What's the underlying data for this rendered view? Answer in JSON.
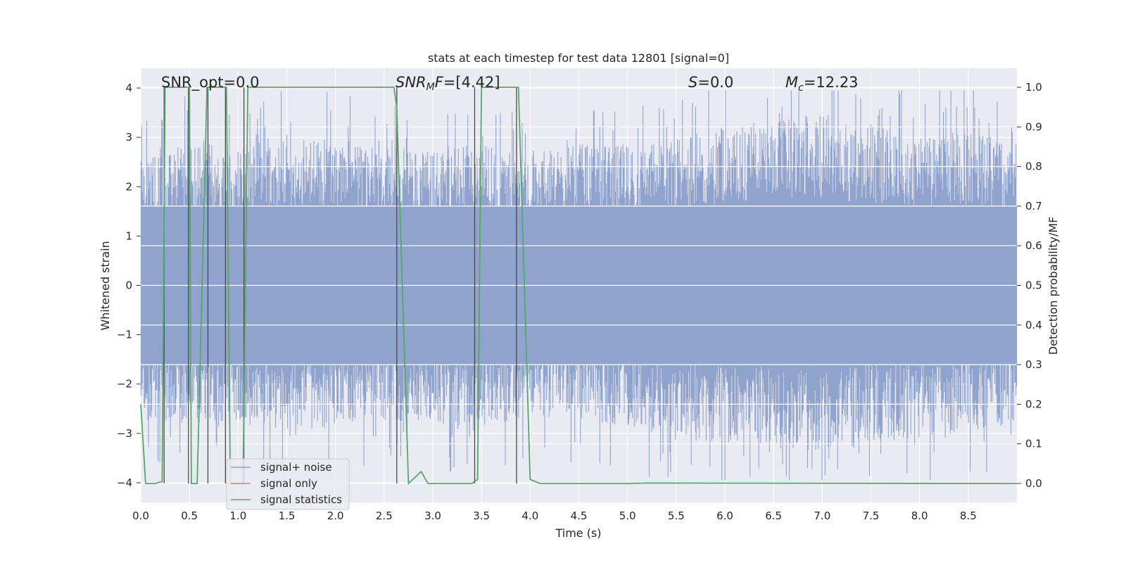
{
  "chart_data": {
    "type": "line",
    "title": "stats at each timestep for test data 12801 [signal=0]",
    "xlabel": "Time (s)",
    "ylabel": "Whitened strain",
    "ylabel_right": "Detection probability/MF",
    "xlim": [
      0.0,
      9.0
    ],
    "ylim": [
      -4.4,
      4.4
    ],
    "ylim_right": [
      -0.048,
      1.048
    ],
    "x_ticks": [
      "0.0",
      "0.5",
      "1.0",
      "1.5",
      "2.0",
      "2.5",
      "3.0",
      "3.5",
      "4.0",
      "4.5",
      "5.0",
      "5.5",
      "6.0",
      "6.5",
      "7.0",
      "7.5",
      "8.0",
      "8.5"
    ],
    "y_ticks": [
      "−4",
      "−3",
      "−2",
      "−1",
      "0",
      "1",
      "2",
      "3",
      "4"
    ],
    "y_right_ticks": [
      "0.0",
      "0.1",
      "0.2",
      "0.3",
      "0.4",
      "0.5",
      "0.6",
      "0.7",
      "0.8",
      "0.9",
      "1.0"
    ],
    "grid": true,
    "legend_position": "lower-left",
    "annotations": {
      "snr_opt": "SNR_opt=0.0",
      "snr_mf_main": "SNR",
      "snr_mf_sub": "M",
      "snr_mf_sub2": "F",
      "snr_mf_value": "=[4.42]",
      "s_main": "S",
      "s_value": "=0.0",
      "mc_main": "M",
      "mc_sub": "c",
      "mc_value": "=12.23"
    },
    "series": [
      {
        "name": "signal+ noise",
        "color": "#8fa3cc",
        "envelope_x": [
          0.0,
          0.5,
          1.0,
          1.5,
          2.0,
          2.5,
          3.0,
          3.5,
          4.0,
          4.5,
          5.0,
          5.5,
          6.0,
          6.5,
          7.0,
          7.5,
          8.0,
          8.5,
          9.0
        ],
        "envelope_upper": [
          2.3,
          2.7,
          2.6,
          2.8,
          2.7,
          2.6,
          2.5,
          2.6,
          2.4,
          2.6,
          2.6,
          2.7,
          3.0,
          3.0,
          3.2,
          3.0,
          2.8,
          2.9,
          2.6
        ],
        "envelope_lower": [
          -2.4,
          -2.6,
          -2.5,
          -2.8,
          -2.6,
          -2.5,
          -2.6,
          -2.7,
          -2.4,
          -2.5,
          -2.6,
          -2.9,
          -2.9,
          -3.0,
          -3.1,
          -2.9,
          -2.8,
          -2.7,
          -2.5
        ]
      },
      {
        "name": "signal only",
        "color": "#dd8452"
      },
      {
        "name": "signal statistics",
        "color": "#55a868",
        "x": [
          0.0,
          0.05,
          0.15,
          0.22,
          0.25,
          0.3,
          0.5,
          0.52,
          0.58,
          0.68,
          0.74,
          0.88,
          0.92,
          1.05,
          1.1,
          1.15,
          2.6,
          2.63,
          2.75,
          2.88,
          2.95,
          3.4,
          3.46,
          3.5,
          3.85,
          3.88,
          4.0,
          4.1,
          5.0,
          5.2,
          9.0
        ],
        "y": [
          0.2,
          0.0,
          0.0,
          0.005,
          1.0,
          1.0,
          1.0,
          0.0,
          0.0,
          1.0,
          1.0,
          1.0,
          0.0,
          0.0,
          1.0,
          1.0,
          1.0,
          0.95,
          0.0,
          0.03,
          0.0,
          0.0,
          0.01,
          1.0,
          1.0,
          1.0,
          0.01,
          0.0,
          0.0,
          0.001,
          0.0
        ]
      }
    ],
    "vertical_markers_x": [
      0.24,
      0.49,
      0.69,
      0.87,
      1.06,
      2.63,
      3.43,
      3.86
    ]
  }
}
